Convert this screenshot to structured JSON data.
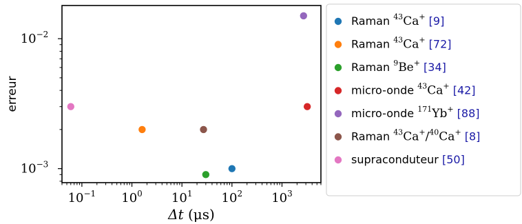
{
  "chart_data": {
    "type": "scatter",
    "xscale": "log",
    "yscale": "log",
    "xlim": [
      0.04,
      6000
    ],
    "ylim": [
      0.00078,
      0.018
    ],
    "xticks": [
      {
        "value": 0.1,
        "base": "10",
        "exp": "−1"
      },
      {
        "value": 1,
        "base": "10",
        "exp": "0"
      },
      {
        "value": 10,
        "base": "10",
        "exp": "1"
      },
      {
        "value": 100,
        "base": "10",
        "exp": "2"
      },
      {
        "value": 1000,
        "base": "10",
        "exp": "3"
      }
    ],
    "yticks": [
      {
        "value": 0.001,
        "base": "10",
        "exp": "−3"
      },
      {
        "value": 0.01,
        "base": "10",
        "exp": "−2"
      }
    ],
    "xlabel": {
      "main": "Δt",
      "unit": "(μs)"
    },
    "ylabel": "erreur",
    "grid": false,
    "legend_position": "right",
    "series": [
      {
        "color": "#1f77b4",
        "x": 100,
        "y": 0.001,
        "label": {
          "prefix": "Raman ",
          "parts": [
            {
              "sup": "43"
            },
            {
              "t": "Ca"
            },
            {
              "sup": "+"
            }
          ],
          "ref": "[9]"
        }
      },
      {
        "color": "#ff7f0e",
        "x": 1.6,
        "y": 0.002,
        "label": {
          "prefix": "Raman ",
          "parts": [
            {
              "sup": "43"
            },
            {
              "t": "Ca"
            },
            {
              "sup": "+"
            }
          ],
          "ref": "[72]"
        }
      },
      {
        "color": "#2ca02c",
        "x": 30,
        "y": 0.0009,
        "label": {
          "prefix": "Raman ",
          "parts": [
            {
              "sup": "9"
            },
            {
              "t": "Be"
            },
            {
              "sup": "+"
            }
          ],
          "ref": "[34]"
        }
      },
      {
        "color": "#d62728",
        "x": 3200,
        "y": 0.003,
        "label": {
          "prefix": "micro-onde ",
          "parts": [
            {
              "sup": "43"
            },
            {
              "t": "Ca"
            },
            {
              "sup": "+"
            }
          ],
          "ref": "[42]"
        }
      },
      {
        "color": "#9467bd",
        "x": 2700,
        "y": 0.015,
        "label": {
          "prefix": "micro-onde ",
          "parts": [
            {
              "sup": "171"
            },
            {
              "t": "Yb"
            },
            {
              "sup": "+"
            }
          ],
          "ref": "[88]"
        }
      },
      {
        "color": "#8c564b",
        "x": 27,
        "y": 0.002,
        "label": {
          "prefix": "Raman ",
          "parts": [
            {
              "sup": "43"
            },
            {
              "t": "Ca"
            },
            {
              "sup": "+"
            },
            {
              "t": "/"
            },
            {
              "sup": "40"
            },
            {
              "t": "Ca"
            },
            {
              "sup": "+"
            }
          ],
          "ref": "[8]"
        }
      },
      {
        "color": "#e377c2",
        "x": 0.06,
        "y": 0.003,
        "label": {
          "prefix": "supraconduteur ",
          "parts": [],
          "ref": "[50]"
        }
      }
    ]
  }
}
